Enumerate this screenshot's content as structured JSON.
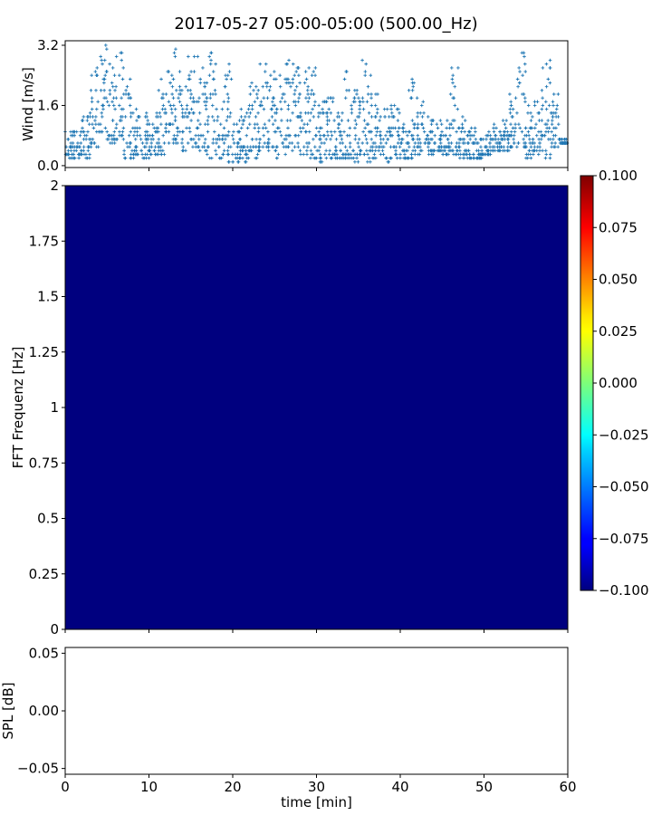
{
  "title": "2017-05-27 05:00-05:00 (500.00_Hz)",
  "chart_data": [
    {
      "type": "scatter",
      "ylabel": "Wind [m/s]",
      "xlim": [
        0,
        60
      ],
      "ylim": [
        -0.05,
        3.32
      ],
      "yticks": [
        "0.0",
        "1.6",
        "3.2"
      ],
      "ytick_values": [
        0.0,
        1.6,
        3.2
      ],
      "marker": "+",
      "color": "#1f77b4",
      "per_minute_range_m_s": [
        [
          0.2,
          1.0
        ],
        [
          0.2,
          1.0
        ],
        [
          0.2,
          1.4
        ],
        [
          0.5,
          2.7
        ],
        [
          0.9,
          3.2
        ],
        [
          0.6,
          3.0
        ],
        [
          0.7,
          3.1
        ],
        [
          0.2,
          2.4
        ],
        [
          0.2,
          1.8
        ],
        [
          0.2,
          1.4
        ],
        [
          0.3,
          1.4
        ],
        [
          0.3,
          2.3
        ],
        [
          0.6,
          2.6
        ],
        [
          0.6,
          3.2
        ],
        [
          0.4,
          3.0
        ],
        [
          0.5,
          3.1
        ],
        [
          0.3,
          2.8
        ],
        [
          0.2,
          3.1
        ],
        [
          0.2,
          1.8
        ],
        [
          0.1,
          2.8
        ],
        [
          0.1,
          1.2
        ],
        [
          0.1,
          1.6
        ],
        [
          0.2,
          2.3
        ],
        [
          0.4,
          2.8
        ],
        [
          0.4,
          2.6
        ],
        [
          0.2,
          2.4
        ],
        [
          0.3,
          2.9
        ],
        [
          0.4,
          2.9
        ],
        [
          0.3,
          2.6
        ],
        [
          0.2,
          2.8
        ],
        [
          0.1,
          2.0
        ],
        [
          0.2,
          2.0
        ],
        [
          0.2,
          1.4
        ],
        [
          0.2,
          2.7
        ],
        [
          0.1,
          2.2
        ],
        [
          0.2,
          2.8
        ],
        [
          0.1,
          2.6
        ],
        [
          0.2,
          1.9
        ],
        [
          0.1,
          1.6
        ],
        [
          0.2,
          1.6
        ],
        [
          0.2,
          1.2
        ],
        [
          0.2,
          2.3
        ],
        [
          0.3,
          2.0
        ],
        [
          0.3,
          1.4
        ],
        [
          0.4,
          1.2
        ],
        [
          0.3,
          1.2
        ],
        [
          0.3,
          2.6
        ],
        [
          0.2,
          1.3
        ],
        [
          0.2,
          1.0
        ],
        [
          0.2,
          0.8
        ],
        [
          0.3,
          0.9
        ],
        [
          0.4,
          1.1
        ],
        [
          0.4,
          1.3
        ],
        [
          0.5,
          2.0
        ],
        [
          0.5,
          3.0
        ],
        [
          0.2,
          1.6
        ],
        [
          0.3,
          2.0
        ],
        [
          0.2,
          2.8
        ],
        [
          0.5,
          1.9
        ],
        [
          0.6,
          0.7
        ]
      ]
    },
    {
      "type": "heatmap",
      "ylabel": "FFT Frequenz [Hz]",
      "xlim": [
        0,
        60
      ],
      "ylim": [
        0,
        2
      ],
      "yticks": [
        "0",
        "0.25",
        "0.5",
        "0.75",
        "1",
        "1.25",
        "1.5",
        "1.75",
        "2"
      ],
      "ytick_values": [
        0,
        0.25,
        0.5,
        0.75,
        1,
        1.25,
        1.5,
        1.75,
        2
      ],
      "value": -0.1,
      "fill_color": "#00007f",
      "colormap": "jet",
      "colorbar": {
        "range": [
          -0.1,
          0.1
        ],
        "ticks": [
          "−0.100",
          "−0.075",
          "−0.050",
          "−0.025",
          "0.000",
          "0.025",
          "0.050",
          "0.075",
          "0.100"
        ],
        "tick_values": [
          -0.1,
          -0.075,
          -0.05,
          -0.025,
          0,
          0.025,
          0.05,
          0.075,
          0.1
        ]
      }
    },
    {
      "type": "line",
      "ylabel": "SPL [dB]",
      "xlabel": "time [min]",
      "xlim": [
        0,
        60
      ],
      "ylim": [
        -0.055,
        0.055
      ],
      "yticks": [
        "−0.05",
        "0.00",
        "0.05"
      ],
      "ytick_values": [
        -0.05,
        0,
        0.05
      ],
      "xticks": [
        "0",
        "10",
        "20",
        "30",
        "40",
        "50",
        "60"
      ],
      "xtick_values": [
        0,
        10,
        20,
        30,
        40,
        50,
        60
      ],
      "series": []
    }
  ]
}
